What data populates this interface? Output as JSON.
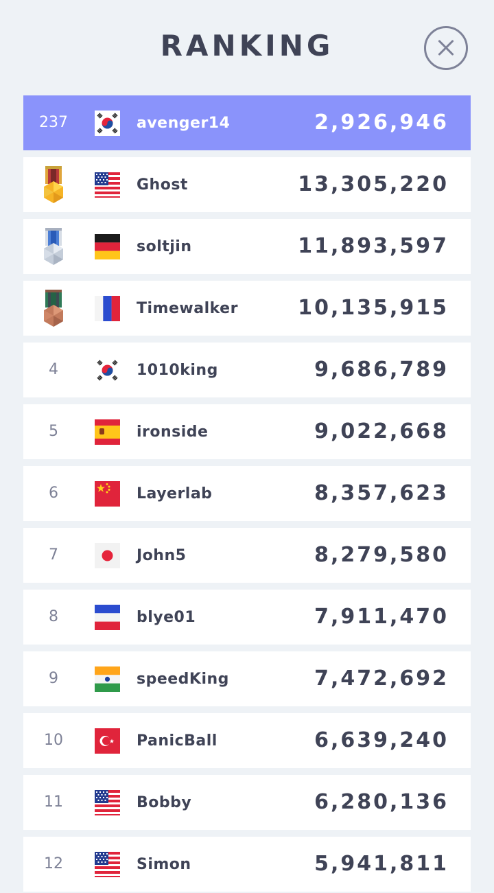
{
  "header": {
    "title": "RANKING"
  },
  "colors": {
    "me_row": "#8a93fb",
    "text": "#3f4356",
    "rank_text": "#7d8196",
    "background": "#eef2f6"
  },
  "me": {
    "rank": "237",
    "flag": "kr",
    "name": "avenger14",
    "score": "2,926,946"
  },
  "rows": [
    {
      "rank": "",
      "medal": "gold",
      "flag": "us",
      "name": "Ghost",
      "score": "13,305,220"
    },
    {
      "rank": "",
      "medal": "silver",
      "flag": "de",
      "name": "soltjin",
      "score": "11,893,597"
    },
    {
      "rank": "",
      "medal": "bronze",
      "flag": "fr",
      "name": "Timewalker",
      "score": "10,135,915"
    },
    {
      "rank": "4",
      "flag": "kr",
      "name": "1010king",
      "score": "9,686,789"
    },
    {
      "rank": "5",
      "flag": "es",
      "name": "ironside",
      "score": "9,022,668"
    },
    {
      "rank": "6",
      "flag": "cn",
      "name": "Layerlab",
      "score": "8,357,623"
    },
    {
      "rank": "7",
      "flag": "jp",
      "name": "John5",
      "score": "8,279,580"
    },
    {
      "rank": "8",
      "flag": "ru",
      "name": "blye01",
      "score": "7,911,470"
    },
    {
      "rank": "9",
      "flag": "in",
      "name": "speedKing",
      "score": "7,472,692"
    },
    {
      "rank": "10",
      "flag": "tr",
      "name": "PanicBall",
      "score": "6,639,240"
    },
    {
      "rank": "11",
      "flag": "us",
      "name": "Bobby",
      "score": "6,280,136"
    },
    {
      "rank": "12",
      "flag": "us",
      "name": "Simon",
      "score": "5,941,811"
    }
  ]
}
